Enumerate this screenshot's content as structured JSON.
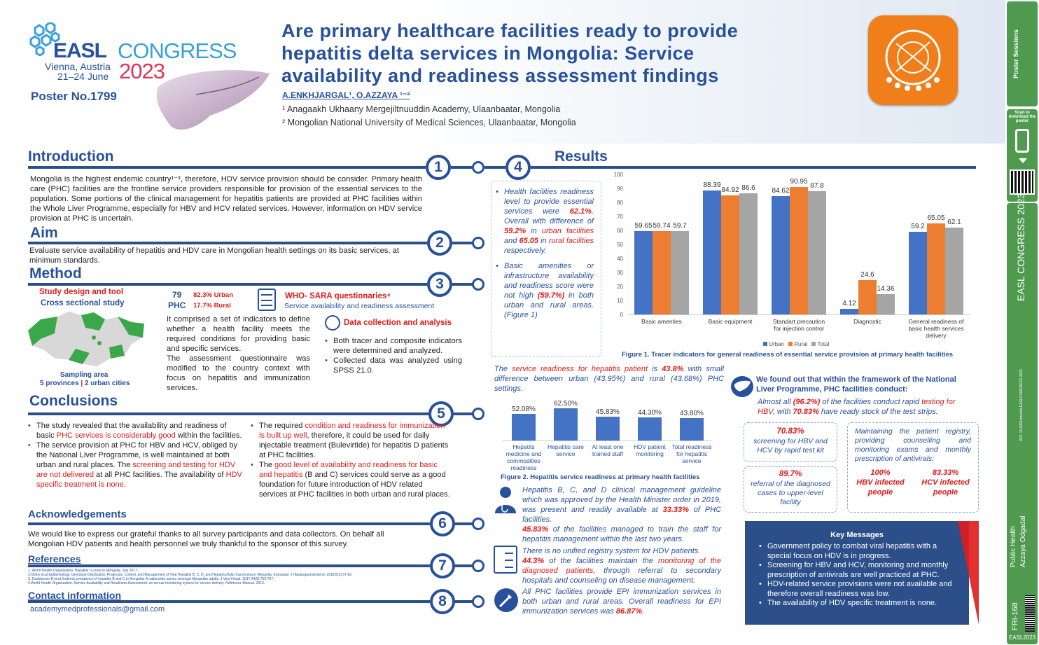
{
  "header": {
    "congress_logo": "EASL",
    "congress_word": "CONGRESS",
    "city": "Vienna, Austria",
    "dates": "21–24 June",
    "year": "2023",
    "poster_no": "Poster No.1799",
    "title_l1": "Are primary healthcare facilities ready to provide",
    "title_l2": "hepatitis delta services in Mongolia: Service",
    "title_l3": "availability and readiness assessment findings",
    "authors": "A.ENKHJARGAL¹, O.AZZAYA ¹⁻²",
    "aff1": "¹ Anagaakh Ukhaany Mergejiltnuuddin Academy, Ulaanbaatar, Mongolia",
    "aff2": "² Mongolian National University of Medical Sciences, Ulaanbaatar, Mongolia"
  },
  "intro": {
    "title": "Introduction",
    "text": "Mongolia is the highest endemic country¹⁻³, therefore, HDV service provision should be consider. Primary health care (PHC) facilities are the frontline service providers responsible for provision of the essential services to the population. Some portions of the clinical management for hepatitis patients are provided at PHC facilities within the Whole Liver Programme, especially for HBV and HCV related services. However, information on HDV service provision at PHC is uncertain."
  },
  "aim": {
    "title": "Aim",
    "text": "Evaluate service availability of hepatitis and HDV care in Mongolian health settings on its basic services, at minimum standards."
  },
  "method": {
    "title": "Method",
    "design_title": "Study design and tool",
    "design_type": "Cross sectional study",
    "phc_n": "79",
    "phc_label": "PHC",
    "urban": "82.3%  Urban",
    "rural": "17.7%  Rural",
    "who_title": "WHO- SARA questionaries⁴",
    "who_sub": "Service availability and readiness assessment",
    "indicators": "It comprised a set of indicators to define whether a health facility meets the required conditions for providing basic and specific services.",
    "modified": "The assessment questionnaire was modified to the country context with focus on hepatitis and immunization services.",
    "data_title": "Data collection and analysis",
    "data_b1": "Both tracer and composite indicators were determined and analyzed.",
    "data_b2": "Collected data was analyzed using SPSS 21.0.",
    "sampling": "Sampling area",
    "sampling_sub1": "5 provinces",
    "sampling_sep": " | ",
    "sampling_sub2": "2 urban cities"
  },
  "conclusions": {
    "title": "Conclusions",
    "c1a": "The study revealed that the availability and readiness of basic ",
    "c1r": "PHC services is considerably good",
    " c1b": " within the facilities.",
    "c2a": "The service provision at PHC for HBV and HCV, obliged by the National Liver Programme, is well maintained at both urban and rural places. The ",
    "c2r1": "screening and testing for HDV are not delivered",
    "c2b": " at all PHC facilities. The availability of ",
    "c2r2": "HDV specific treatment is none",
    ".": ".",
    "c3a": "The required ",
    "c3r": "condition and readiness for immunization is built up well",
    "c3b": ", therefore, it could be used for daily injectable treatment (Bulevirtide) for hepatitis D patients at PHC facilities.",
    "c4a": "The ",
    "c4r": "good level of availability and readiness for basic and hepatitis",
    "c4b": " (B and C) services could serve as a good foundation for future introduction of HDV related services at PHC facilities in both urban and rural places."
  },
  "ack": {
    "title": "Acknowledgements",
    "text": "We would like to express our grateful thanks to all survey participants and data collectors. On behalf all Mongolian HDV patients and health personnel we truly thankful to the sponsor of this survey."
  },
  "refs": {
    "title": "References",
    "r1": "1. World Health Organisation. Hepatitis: a crisis in Mongolia. July 2017.",
    "r2": "2.Oldov et.al Epidemiology, Genotype Distribution, Prognosis, Control, and Management of Viral Hepatitis B, C, D, and Hepatocellular Carcinoma in Mongolia. Euroasian J Hepatogastroenterol. 2018;8(1):57-62.",
    "r3": "3. Dashtseren B et.al Endemic prevalence of hepatitis B and C in Mongolia: A nationwide survey amongst Mongolian adults. J Viral Hepat. 2017;24(9):759-767.",
    "r4": "4.World Health Organization. Service Availability and Readiness Assessment: an annual monitoring system for service delivery. Reference Manual. 2013."
  },
  "contact": {
    "title": "Contact information",
    "email": "academymedprofessionals@gmail.com"
  },
  "numbers": {
    "n1": "1",
    "n2": "2",
    "n3": "3",
    "n4": "4",
    "n5": "5",
    "n6": "6",
    "n7": "7",
    "n8": "8"
  },
  "results": {
    "title": "Results",
    "b1a": "Health facilities readiness level to provide essential services were ",
    "b1r1": "62.1%",
    ". Overall with difference of ": "",
    "b1b": ". Overall with difference of ",
    "b1r2": "59.2%",
    "b1c": " in ",
    "b1r3": "urban facilities",
    "b1d": " and ",
    "b1r4": "65.05",
    "b1e": " in ",
    "b1r5": "rural facilities",
    "b1f": " respectively.",
    "b2a": "Basic amenities or infrastructure availability and readiness score were not high ",
    "b2r": "(59.7%)",
    "b2b": " in both urban and rural areas. (Figure 1)",
    "fig1_caption": "Figure 1. Tracer indicators for general readiness of essential service provision at primary health facilities",
    "readiness_a": "The ",
    "readiness_r1": "service readiness for hepatitis patient",
    "readiness_b": " is ",
    "readiness_r2": "43.8%",
    "readiness_c": " with small difference between urban (43.95%) and rural (43.68%) PHC settings.",
    "fig2_caption": "Figure 2. Hepatitis service readiness at primary health facilities",
    "found_title": "We found out that within the framework of the National Liver Programme, PHC facilities conduct:",
    "found_a": "Almost all ",
    "found_r1": "(96.2%)",
    "found_b": " of the facilities conduct rapid ",
    "found_r2": "testing for HBV",
    "found_c": ", with ",
    "found_r3": "70.83%",
    "found_d": " have ready stock of the test strips.",
    "box1_pct": "70.83%",
    "box1_text": "screening for HBV and HCV by rapid test kit",
    "box2_pct": "89.7%",
    "box2_text": "referral of the diagnosed cases to upper-level facility",
    "box3_text": "Maintaining the patient registry, providing counselling and monitoring exams and monthly prescription of antivirals:",
    "box3_p1": "100%",
    "box3_l1": "HBV infected people",
    "box3_p2": "83.33%",
    "box3_l2": "HCV infected people",
    "g_a": "Hepatitis B, C, and D clinical management guideline which was approved by the Health Minister order in 2019, was present and readily available at ",
    "g_r": "33.33%",
    "g_b": " of PHC facilities.",
    "t_r": "45.83%",
    "t_b": " of the facilities managed to train the staff for hepatitis management within the last two years.",
    "reg_a": "There is no unified registry system for HDV patients.",
    "reg_r1": "44.3%",
    "reg_b": " of the facilities maintain the ",
    "reg_r2": "monitoring of the diagnosed patients",
    "reg_c": ", through referral to secondary hospitals and counseling on disease management.",
    "epi_a": "All PHC facilities provide EPI immunization services in both urban and rural areas. Overall readiness for EPI immunization services was ",
    "epi_r": "86.87%",
    "epi_b": "."
  },
  "key": {
    "title": "Key Messages",
    "k1": "Government policy to combat viral hepatitis with a special focus on HDV is in progress.",
    "k2": "Screening for HBV and HCV, monitoring and monthly prescription of antivirals are well practiced at PHC.",
    "k3": "HDV-related service provisions were not available and therefore overall readiness was low.",
    "k4": "The availability of HDV specific treatment is none."
  },
  "sidebar": {
    "ps": "Poster Sessions",
    "scan": "Scan to download the poster",
    "easl": "EASL CONGRESS 2023",
    "doi": "DOI: 10.5281/zenodo.EASLCONGRESS 2023",
    "topic": "Public Health",
    "author": "Azzaya Odgadal",
    "code": "FRI-168",
    "tag": "EASL2023"
  },
  "colors": {
    "blue": "#27519c",
    "red": "#e01b1b",
    "urban": "#4472c4",
    "rural": "#ed7d31",
    "total": "#a5a5a5"
  },
  "chart_data": [
    {
      "type": "bar",
      "title": "Figure 1. Tracer indicators for general readiness of essential service provision at primary health facilities",
      "categories": [
        "Basic amenties",
        "Basic equipment",
        "Standart precaution for injection control",
        "Diagnostic",
        "General readiness of basic health services delivery"
      ],
      "series": [
        {
          "name": "Urban",
          "values": [
            59.65,
            88.39,
            84.62,
            4.12,
            59.2
          ]
        },
        {
          "name": "Rural",
          "values": [
            59.74,
            84.92,
            90.95,
            24.6,
            65.05
          ]
        },
        {
          "name": "Total",
          "values": [
            59.7,
            86.6,
            87.8,
            14.36,
            62.1
          ]
        }
      ],
      "yticks": [
        "0",
        "10",
        "20",
        "30",
        "40",
        "50",
        "60",
        "70",
        "80",
        "90",
        "100"
      ],
      "ylim": [
        0,
        100
      ],
      "labels": [
        [
          "59.65",
          "59.74",
          "59.7"
        ],
        [
          "88.39",
          "84.92",
          "86.6"
        ],
        [
          "84.62",
          "90.95",
          "87.8"
        ],
        [
          "4.12",
          "24.6",
          "14.36"
        ],
        [
          "59.2",
          "65.05",
          "62.1"
        ]
      ],
      "legend": "bottom"
    },
    {
      "type": "bar",
      "title": "Figure 2. Hepatitis service readiness at primary health facilities",
      "categories": [
        "Hepatits medicine and commodities readiness",
        "Hepatitis care service",
        "At least one trained staff",
        "HDV patient monitoring",
        "Total readiness for hepatitis service"
      ],
      "values": [
        52.08,
        62.5,
        45.83,
        44.3,
        43.8
      ],
      "labels": [
        "52.08%",
        "62.50%",
        "45.83%",
        "44.30%",
        "43.80%"
      ],
      "ylim": [
        0,
        100
      ]
    }
  ]
}
